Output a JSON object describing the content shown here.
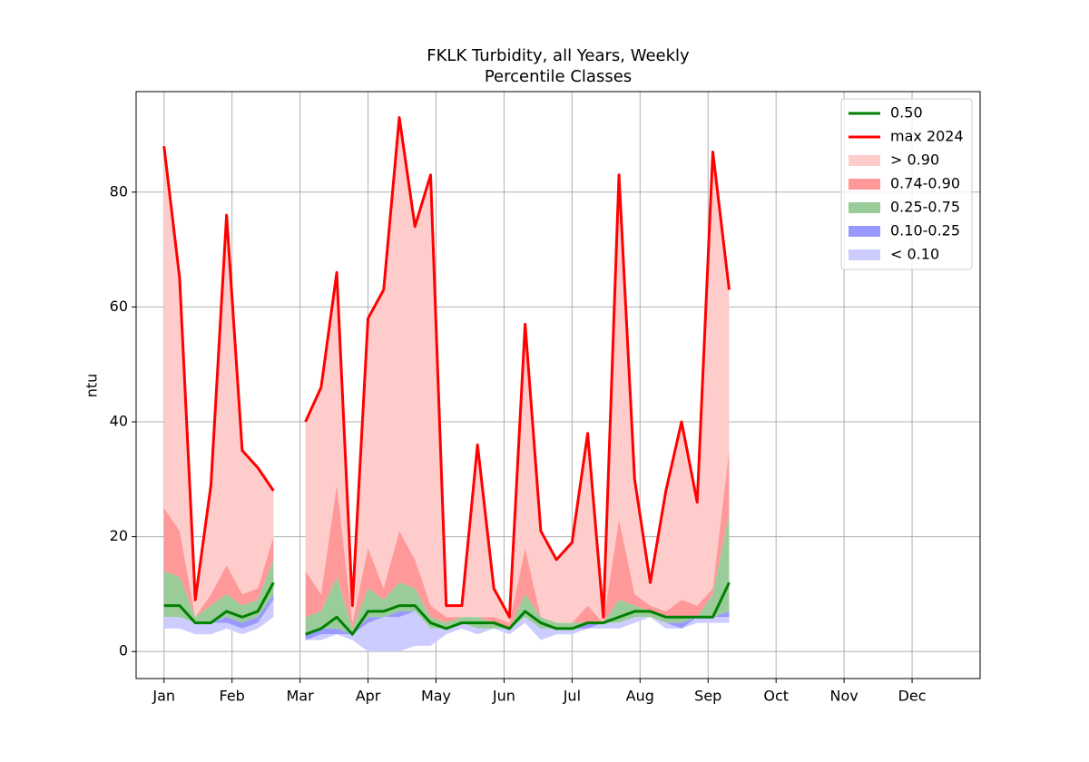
{
  "chart_data": {
    "type": "percentile_bands",
    "title": "FKLK Turbidity, all Years, Weekly",
    "subtitle": "Percentile Classes",
    "ylabel": "ntu",
    "x": [
      1,
      1.23,
      1.46,
      1.69,
      1.92,
      2.15,
      2.38,
      2.61,
      2.85,
      3.08,
      3.31,
      3.54,
      3.77,
      4.0,
      4.23,
      4.46,
      4.69,
      4.92,
      5.15,
      5.38,
      5.61,
      5.85,
      6.08,
      6.31,
      6.54,
      6.77,
      7.0,
      7.23,
      7.46,
      7.69,
      7.92,
      8.15,
      8.38,
      8.61,
      8.84,
      9.07,
      9.31
    ],
    "series": [
      {
        "name": "0.50",
        "color": "#008000",
        "values": [
          8,
          8,
          5,
          5,
          7,
          6,
          7,
          12,
          null,
          3,
          4,
          6,
          3,
          7,
          7,
          8,
          8,
          5,
          4,
          5,
          5,
          5,
          4,
          7,
          5,
          4,
          4,
          5,
          5,
          6,
          7,
          7,
          6,
          6,
          6,
          6,
          12
        ]
      },
      {
        "name": "max 2024",
        "color": "#ff0000",
        "values": [
          88,
          65,
          9,
          29,
          76,
          35,
          32,
          28,
          null,
          40,
          46,
          66,
          8,
          58,
          63,
          93,
          74,
          83,
          8,
          8,
          36,
          11,
          6,
          57,
          21,
          16,
          19,
          38,
          6,
          83,
          30,
          12,
          28,
          40,
          26,
          87,
          63
        ]
      }
    ],
    "bands": [
      {
        "name": "> 0.90",
        "color": "#ffcccc",
        "lower": [
          25,
          21,
          6,
          10,
          15,
          10,
          11,
          20,
          null,
          14,
          10,
          29,
          5,
          18,
          11,
          21,
          16,
          8,
          6,
          6,
          6,
          6,
          5,
          18,
          6,
          5,
          5,
          8,
          5,
          23,
          10,
          8,
          7,
          9,
          8,
          11,
          35
        ],
        "upper": [
          88,
          65,
          9,
          29,
          76,
          35,
          32,
          28,
          null,
          40,
          46,
          66,
          8,
          58,
          63,
          93,
          74,
          83,
          8,
          8,
          36,
          11,
          6,
          57,
          21,
          16,
          19,
          38,
          6,
          83,
          30,
          12,
          28,
          40,
          26,
          87,
          63
        ]
      },
      {
        "name": "0.74-0.90",
        "color": "#ff9999",
        "lower": [
          14,
          13,
          6,
          8,
          10,
          8,
          9,
          16,
          null,
          6,
          7,
          13,
          4,
          11,
          9,
          12,
          11,
          6,
          5,
          6,
          6,
          5,
          4,
          10,
          6,
          5,
          5,
          5,
          5,
          9,
          8,
          7,
          6,
          6,
          6,
          10,
          24
        ],
        "upper": [
          25,
          21,
          6,
          10,
          15,
          10,
          11,
          20,
          null,
          14,
          10,
          29,
          5,
          18,
          11,
          21,
          16,
          8,
          6,
          6,
          6,
          6,
          5,
          18,
          6,
          5,
          5,
          8,
          5,
          23,
          10,
          8,
          7,
          9,
          8,
          11,
          35
        ]
      },
      {
        "name": "0.25-0.75",
        "color": "#99cc99",
        "lower": [
          6,
          6,
          5,
          5,
          6,
          5,
          6,
          10,
          null,
          3,
          4,
          4,
          3,
          6,
          6,
          7,
          7,
          4,
          4,
          5,
          4,
          4,
          4,
          6,
          4,
          4,
          4,
          5,
          5,
          5,
          6,
          6,
          5,
          5,
          6,
          6,
          7
        ],
        "upper": [
          14,
          13,
          6,
          8,
          10,
          8,
          9,
          16,
          null,
          6,
          7,
          13,
          4,
          11,
          9,
          12,
          11,
          6,
          5,
          6,
          6,
          5,
          4,
          10,
          6,
          5,
          5,
          5,
          5,
          9,
          8,
          7,
          6,
          6,
          6,
          10,
          24
        ]
      },
      {
        "name": "0.10-0.25",
        "color": "#9999ff",
        "lower": [
          6,
          6,
          5,
          5,
          5,
          4,
          5,
          9,
          null,
          2,
          3,
          3,
          3,
          5,
          6,
          6,
          7,
          4,
          4,
          5,
          4,
          4,
          4,
          6,
          4,
          4,
          4,
          4,
          5,
          5,
          6,
          6,
          5,
          4,
          6,
          6,
          6
        ],
        "upper": [
          6,
          6,
          5,
          5,
          6,
          5,
          6,
          10,
          null,
          3,
          4,
          4,
          3,
          6,
          6,
          7,
          7,
          4,
          4,
          5,
          4,
          4,
          4,
          6,
          4,
          4,
          4,
          5,
          5,
          5,
          6,
          6,
          5,
          5,
          6,
          6,
          7
        ]
      },
      {
        "name": "< 0.10",
        "color": "#ccccff",
        "lower": [
          4,
          4,
          3,
          3,
          4,
          3,
          4,
          6,
          null,
          2,
          2,
          3,
          2,
          0,
          0,
          0,
          1,
          1,
          3,
          4,
          3,
          4,
          3,
          5,
          2,
          3,
          3,
          4,
          4,
          4,
          5,
          6,
          4,
          4,
          5,
          5,
          5
        ],
        "upper": [
          6,
          6,
          5,
          5,
          5,
          4,
          5,
          9,
          null,
          2,
          3,
          3,
          3,
          5,
          6,
          6,
          7,
          4,
          4,
          5,
          4,
          4,
          4,
          6,
          4,
          4,
          4,
          4,
          5,
          5,
          6,
          6,
          5,
          4,
          6,
          6,
          6
        ]
      }
    ],
    "xlim": [
      0.59,
      13
    ],
    "xticks": [
      {
        "value": 1,
        "label": "Jan"
      },
      {
        "value": 2,
        "label": "Feb"
      },
      {
        "value": 3,
        "label": "Mar"
      },
      {
        "value": 4,
        "label": "Apr"
      },
      {
        "value": 5,
        "label": "May"
      },
      {
        "value": 6,
        "label": "Jun"
      },
      {
        "value": 7,
        "label": "Jul"
      },
      {
        "value": 8,
        "label": "Aug"
      },
      {
        "value": 9,
        "label": "Sep"
      },
      {
        "value": 10,
        "label": "Oct"
      },
      {
        "value": 11,
        "label": "Nov"
      },
      {
        "value": 12,
        "label": "Dec"
      }
    ],
    "ylim": [
      -4.7,
      97.5
    ],
    "yticks": [
      0,
      20,
      40,
      60,
      80
    ],
    "grid": true,
    "legend": "upper right"
  }
}
